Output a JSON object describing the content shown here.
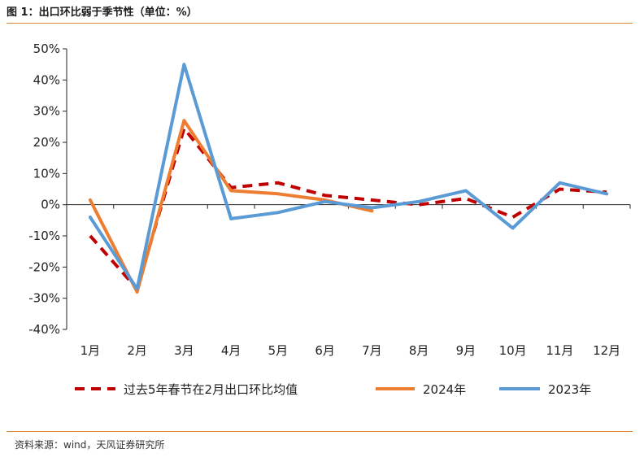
{
  "header": {
    "title": "图 1：出口环比弱于季节性（单位：%）"
  },
  "footer": {
    "source": "资料来源：wind，天风证券研究所"
  },
  "colors": {
    "series_avg": "#c00000",
    "series_2024": "#ed7d31",
    "series_2023": "#5b9bd5",
    "accent_rule": "#e08a3c"
  },
  "chart_data": {
    "type": "line",
    "title": "",
    "xlabel": "",
    "ylabel": "",
    "categories": [
      "1月",
      "2月",
      "3月",
      "4月",
      "5月",
      "6月",
      "7月",
      "8月",
      "9月",
      "10月",
      "11月",
      "12月"
    ],
    "ylim": [
      -40,
      50
    ],
    "yticks": [
      -40,
      -30,
      -20,
      -10,
      0,
      10,
      20,
      30,
      40,
      50
    ],
    "ytick_labels": [
      "-40%",
      "-30%",
      "-20%",
      "-10%",
      "0%",
      "10%",
      "20%",
      "30%",
      "40%",
      "50%"
    ],
    "legend_position": "bottom",
    "grid": false,
    "series": [
      {
        "name": "过去5年春节在2月出口环比均值",
        "style": "dashed",
        "color": "#c00000",
        "values": [
          -10,
          -27,
          24.5,
          5.5,
          7,
          3,
          1.5,
          0,
          2,
          -4,
          5,
          4
        ]
      },
      {
        "name": "2024年",
        "style": "solid",
        "color": "#ed7d31",
        "values": [
          1.5,
          -28,
          27,
          4.5,
          3.5,
          1.5,
          -2,
          null,
          null,
          null,
          null,
          null
        ]
      },
      {
        "name": "2023年",
        "style": "solid",
        "color": "#5b9bd5",
        "values": [
          -4,
          -27,
          45,
          -4.5,
          -2.5,
          1,
          -1,
          1,
          4.5,
          -7.5,
          7,
          3.5
        ]
      }
    ]
  }
}
